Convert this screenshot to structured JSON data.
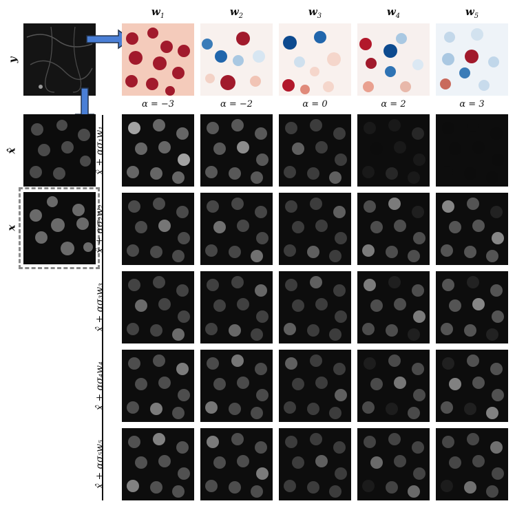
{
  "labels": {
    "y": "y",
    "x_hat": "x̂",
    "x": "x"
  },
  "columns": [
    {
      "name": "w",
      "sub": "1",
      "alpha": "α = −3"
    },
    {
      "name": "w",
      "sub": "2",
      "alpha": "α = −2"
    },
    {
      "name": "w",
      "sub": "3",
      "alpha": "α = 0"
    },
    {
      "name": "w",
      "sub": "4",
      "alpha": "α = 2"
    },
    {
      "name": "w",
      "sub": "5",
      "alpha": "α = 3"
    }
  ],
  "rows": [
    {
      "label": "x̂ + ασ₁w₁"
    },
    {
      "label": "x̂ + ασ₂w₂"
    },
    {
      "label": "x̂ + ασ₃w₃"
    },
    {
      "label": "x̂ + ασ₄w₄"
    },
    {
      "label": "x̂ + ασ₅w₅"
    }
  ],
  "colors": {
    "arrow_fill": "#4a7fd6",
    "arrow_stroke": "#22324a",
    "dashed_border": "#8a8a8a",
    "heat_positive": "#b2182b",
    "heat_negative": "#2166ac"
  }
}
